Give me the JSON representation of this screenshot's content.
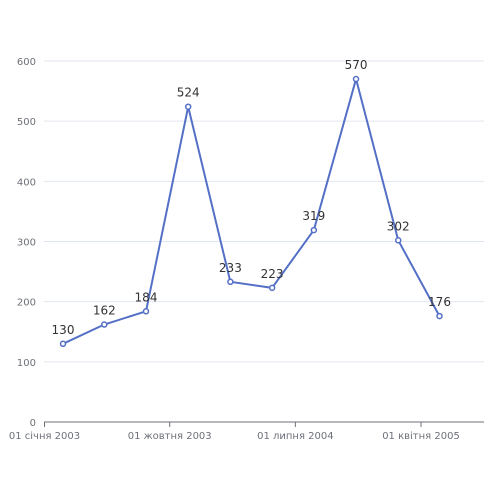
{
  "chart_data": {
    "type": "line",
    "title": "",
    "xlabel": "",
    "ylabel": "",
    "x": [
      "2003-01-01",
      "2003-04-01",
      "2003-07-01",
      "2003-10-01",
      "2004-01-01",
      "2004-04-01",
      "2004-07-01",
      "2004-10-01",
      "2005-01-01",
      "2005-04-01"
    ],
    "series": [
      {
        "values": [
          130,
          162,
          184,
          524,
          233,
          223,
          319,
          570,
          302,
          176
        ],
        "color": "#5470c6"
      }
    ],
    "ylim": [
      0,
      600
    ],
    "yticks": [
      0,
      100,
      200,
      300,
      400,
      500,
      600
    ],
    "xticks": [
      {
        "date": "2003-01-01",
        "label": "01 січня 2003"
      },
      {
        "date": "2003-10-01",
        "label": "01 жовтня 2003"
      },
      {
        "date": "2004-07-01",
        "label": "01 липня 2004"
      },
      {
        "date": "2005-04-01",
        "label": "01 квітня 2005"
      }
    ],
    "grid": true,
    "data_labels": true
  }
}
